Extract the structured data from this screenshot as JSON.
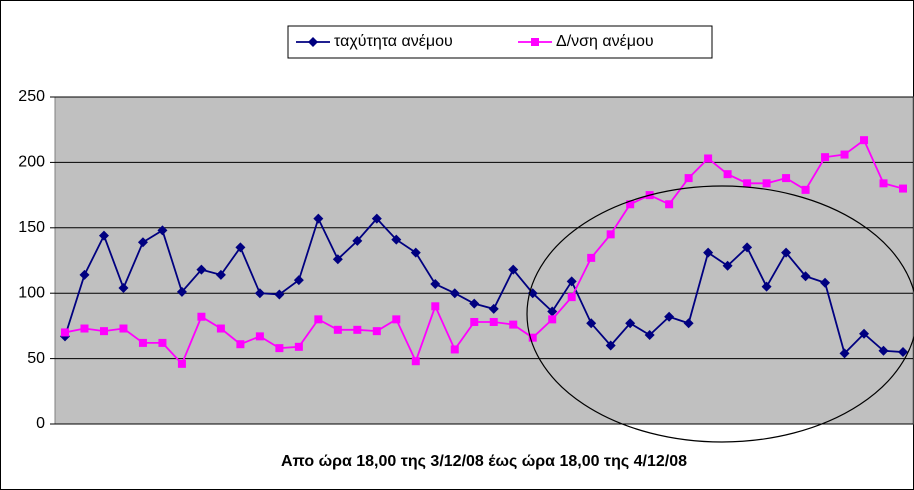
{
  "chart_data": {
    "type": "line",
    "xlabel": "Απο ώρα 18,00 της 3/12/08 έως ώρα 18,00 της 4/12/08",
    "ylim": [
      0,
      250
    ],
    "yticks": [
      0,
      50,
      100,
      150,
      200,
      250
    ],
    "grid": true,
    "series": [
      {
        "name": "ταχύτητα ανέμου",
        "color": "#000080",
        "marker": "diamond",
        "values": [
          67,
          114,
          144,
          104,
          139,
          148,
          101,
          118,
          114,
          135,
          100,
          99,
          110,
          157,
          126,
          140,
          157,
          141,
          131,
          107,
          100,
          92,
          88,
          118,
          100,
          86,
          109,
          77,
          60,
          77,
          68,
          82,
          77,
          131,
          121,
          135,
          105,
          131,
          113,
          108,
          54,
          69,
          56,
          55
        ]
      },
      {
        "name": "Δ/νση ανέμου",
        "color": "#ff00ff",
        "marker": "square",
        "values": [
          70,
          73,
          71,
          73,
          62,
          62,
          46,
          82,
          73,
          61,
          67,
          58,
          59,
          80,
          72,
          72,
          71,
          80,
          48,
          90,
          57,
          78,
          78,
          76,
          66,
          80,
          97,
          127,
          145,
          168,
          175,
          168,
          188,
          203,
          191,
          184,
          184,
          188,
          179,
          204,
          206,
          217,
          184,
          180
        ]
      }
    ]
  }
}
